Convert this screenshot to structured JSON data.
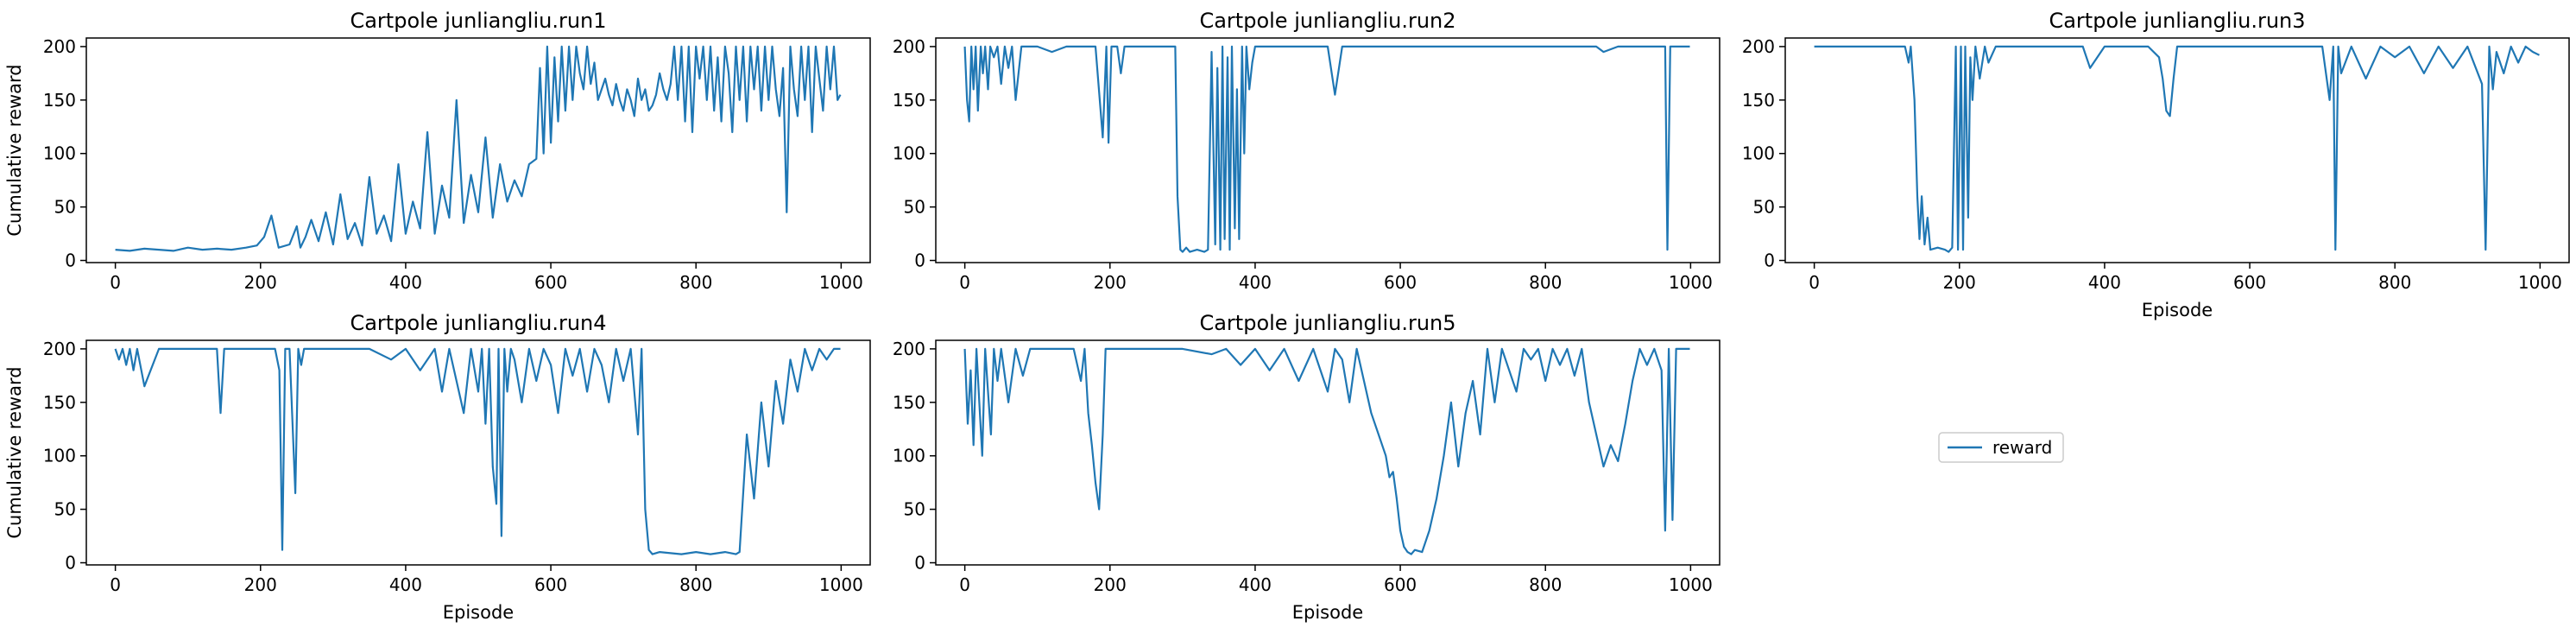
{
  "figure": {
    "line_color": "#1f77b4",
    "legend_label": "reward"
  },
  "chart_data": [
    {
      "type": "line",
      "title": "Cartpole junliangliu.run1",
      "xlabel": "",
      "ylabel": "Cumulative reward",
      "xlim": [
        -40,
        1040
      ],
      "ylim": [
        -2,
        208
      ],
      "xticks": [
        "0",
        "200",
        "400",
        "600",
        "800",
        "1000"
      ],
      "yticks": [
        "0",
        "50",
        "100",
        "150",
        "200"
      ],
      "series": [
        {
          "name": "reward",
          "x": [
            0,
            20,
            40,
            60,
            80,
            100,
            120,
            140,
            160,
            180,
            195,
            205,
            215,
            225,
            240,
            250,
            255,
            262,
            270,
            280,
            290,
            300,
            310,
            320,
            330,
            340,
            350,
            360,
            370,
            380,
            390,
            400,
            410,
            420,
            430,
            440,
            450,
            460,
            470,
            480,
            490,
            500,
            510,
            520,
            530,
            540,
            550,
            560,
            570,
            580,
            585,
            590,
            595,
            600,
            605,
            610,
            615,
            620,
            625,
            630,
            635,
            640,
            645,
            650,
            655,
            660,
            665,
            670,
            675,
            680,
            685,
            690,
            695,
            700,
            705,
            710,
            715,
            720,
            725,
            730,
            735,
            740,
            745,
            750,
            755,
            760,
            765,
            770,
            775,
            780,
            785,
            790,
            795,
            800,
            805,
            810,
            815,
            820,
            825,
            830,
            835,
            840,
            845,
            850,
            855,
            860,
            865,
            870,
            875,
            880,
            885,
            890,
            895,
            900,
            905,
            910,
            915,
            920,
            925,
            930,
            935,
            940,
            945,
            950,
            955,
            960,
            965,
            970,
            975,
            980,
            985,
            990,
            995,
            999
          ],
          "y": [
            10,
            9,
            11,
            10,
            9,
            12,
            10,
            11,
            10,
            12,
            14,
            22,
            42,
            12,
            15,
            32,
            12,
            22,
            38,
            18,
            45,
            15,
            62,
            20,
            35,
            14,
            78,
            25,
            42,
            18,
            90,
            25,
            55,
            30,
            120,
            25,
            70,
            40,
            150,
            35,
            80,
            45,
            115,
            40,
            90,
            55,
            75,
            60,
            90,
            95,
            180,
            100,
            200,
            110,
            190,
            130,
            200,
            140,
            200,
            150,
            200,
            175,
            160,
            200,
            165,
            185,
            150,
            160,
            170,
            155,
            145,
            165,
            150,
            140,
            160,
            150,
            135,
            170,
            150,
            160,
            140,
            145,
            155,
            175,
            160,
            150,
            165,
            200,
            150,
            200,
            130,
            200,
            120,
            200,
            170,
            200,
            150,
            200,
            140,
            190,
            130,
            200,
            175,
            120,
            200,
            150,
            200,
            130,
            200,
            160,
            200,
            140,
            200,
            150,
            200,
            160,
            135,
            180,
            45,
            200,
            160,
            135,
            200,
            150,
            200,
            120,
            200,
            170,
            140,
            200,
            160,
            200,
            150,
            155
          ]
        }
      ]
    },
    {
      "type": "line",
      "title": "Cartpole junliangliu.run2",
      "xlabel": "",
      "ylabel": "",
      "xlim": [
        -40,
        1040
      ],
      "ylim": [
        -2,
        208
      ],
      "xticks": [
        "0",
        "200",
        "400",
        "600",
        "800",
        "1000"
      ],
      "yticks": [
        "0",
        "50",
        "100",
        "150",
        "200"
      ],
      "series": [
        {
          "name": "reward",
          "x": [
            0,
            3,
            6,
            9,
            12,
            15,
            18,
            22,
            25,
            28,
            32,
            35,
            40,
            45,
            50,
            55,
            60,
            65,
            70,
            78,
            85,
            100,
            120,
            140,
            160,
            180,
            190,
            195,
            198,
            202,
            210,
            215,
            220,
            240,
            260,
            280,
            290,
            293,
            297,
            300,
            305,
            310,
            320,
            330,
            335,
            340,
            345,
            348,
            352,
            355,
            358,
            362,
            365,
            368,
            372,
            375,
            378,
            382,
            385,
            388,
            392,
            396,
            400,
            405,
            410,
            420,
            440,
            460,
            480,
            500,
            510,
            520,
            540,
            560,
            580,
            620,
            680,
            740,
            760,
            800,
            840,
            870,
            880,
            900,
            940,
            960,
            965,
            968,
            972,
            990,
            999
          ],
          "y": [
            200,
            150,
            130,
            200,
            160,
            200,
            140,
            200,
            175,
            200,
            160,
            200,
            190,
            200,
            165,
            200,
            180,
            200,
            150,
            200,
            200,
            200,
            195,
            200,
            200,
            200,
            115,
            200,
            110,
            200,
            200,
            175,
            200,
            200,
            200,
            200,
            200,
            60,
            10,
            8,
            12,
            8,
            10,
            8,
            10,
            195,
            15,
            180,
            10,
            200,
            20,
            190,
            10,
            200,
            30,
            160,
            20,
            200,
            100,
            200,
            160,
            185,
            200,
            200,
            200,
            200,
            200,
            200,
            200,
            200,
            155,
            200,
            200,
            200,
            200,
            200,
            200,
            200,
            200,
            200,
            200,
            200,
            195,
            200,
            200,
            200,
            200,
            10,
            200,
            200,
            200
          ]
        }
      ]
    },
    {
      "type": "line",
      "title": "Cartpole junliangliu.run3",
      "xlabel": "Episode",
      "ylabel": "",
      "xlim": [
        -40,
        1040
      ],
      "ylim": [
        -2,
        208
      ],
      "xticks": [
        "0",
        "200",
        "400",
        "600",
        "800",
        "1000"
      ],
      "yticks": [
        "0",
        "50",
        "100",
        "150",
        "200"
      ],
      "series": [
        {
          "name": "reward",
          "x": [
            0,
            50,
            100,
            125,
            130,
            133,
            138,
            142,
            145,
            148,
            152,
            156,
            160,
            170,
            180,
            185,
            190,
            195,
            198,
            202,
            205,
            208,
            212,
            215,
            218,
            222,
            228,
            235,
            240,
            250,
            260,
            280,
            300,
            320,
            340,
            370,
            380,
            400,
            420,
            440,
            460,
            475,
            480,
            485,
            490,
            495,
            500,
            510,
            520,
            560,
            600,
            640,
            680,
            700,
            710,
            715,
            718,
            722,
            726,
            740,
            760,
            780,
            800,
            820,
            840,
            860,
            880,
            900,
            920,
            925,
            930,
            935,
            940,
            950,
            960,
            970,
            980,
            990,
            999
          ],
          "y": [
            200,
            200,
            200,
            200,
            185,
            200,
            150,
            60,
            20,
            60,
            15,
            40,
            10,
            12,
            10,
            8,
            12,
            200,
            10,
            200,
            10,
            200,
            40,
            190,
            150,
            200,
            170,
            200,
            185,
            200,
            200,
            200,
            200,
            200,
            200,
            200,
            180,
            200,
            200,
            200,
            200,
            190,
            170,
            140,
            135,
            170,
            200,
            200,
            200,
            200,
            200,
            200,
            200,
            200,
            150,
            200,
            10,
            200,
            175,
            200,
            170,
            200,
            190,
            200,
            175,
            200,
            180,
            200,
            165,
            10,
            200,
            160,
            195,
            175,
            200,
            185,
            200,
            195,
            192
          ]
        }
      ]
    },
    {
      "type": "line",
      "title": "Cartpole junliangliu.run4",
      "xlabel": "Episode",
      "ylabel": "Cumulative reward",
      "xlim": [
        -40,
        1040
      ],
      "ylim": [
        -2,
        208
      ],
      "xticks": [
        "0",
        "200",
        "400",
        "600",
        "800",
        "1000"
      ],
      "yticks": [
        "0",
        "50",
        "100",
        "150",
        "200"
      ],
      "series": [
        {
          "name": "reward",
          "x": [
            0,
            5,
            10,
            15,
            20,
            25,
            30,
            40,
            60,
            80,
            100,
            140,
            145,
            150,
            200,
            220,
            226,
            230,
            234,
            240,
            248,
            252,
            256,
            260,
            280,
            300,
            350,
            380,
            400,
            420,
            440,
            450,
            460,
            470,
            480,
            490,
            500,
            505,
            510,
            515,
            520,
            525,
            528,
            532,
            536,
            540,
            545,
            550,
            560,
            570,
            580,
            590,
            600,
            610,
            620,
            630,
            640,
            650,
            660,
            670,
            680,
            690,
            700,
            710,
            720,
            725,
            730,
            735,
            740,
            750,
            780,
            800,
            820,
            840,
            855,
            860,
            870,
            880,
            890,
            900,
            910,
            920,
            930,
            940,
            950,
            960,
            970,
            980,
            990,
            999
          ],
          "y": [
            200,
            190,
            200,
            185,
            200,
            180,
            200,
            165,
            200,
            200,
            200,
            200,
            140,
            200,
            200,
            200,
            180,
            12,
            200,
            200,
            65,
            200,
            185,
            200,
            200,
            200,
            200,
            190,
            200,
            180,
            200,
            160,
            200,
            170,
            140,
            200,
            160,
            200,
            130,
            200,
            90,
            55,
            200,
            25,
            200,
            160,
            200,
            190,
            150,
            200,
            170,
            200,
            185,
            140,
            200,
            175,
            200,
            160,
            200,
            185,
            150,
            200,
            170,
            200,
            120,
            200,
            50,
            12,
            8,
            10,
            8,
            10,
            8,
            10,
            8,
            10,
            120,
            60,
            150,
            90,
            170,
            130,
            190,
            160,
            200,
            180,
            200,
            190,
            200,
            200
          ]
        }
      ]
    },
    {
      "type": "line",
      "title": "Cartpole junliangliu.run5",
      "xlabel": "Episode",
      "ylabel": "",
      "xlim": [
        -40,
        1040
      ],
      "ylim": [
        -2,
        208
      ],
      "xticks": [
        "0",
        "200",
        "400",
        "600",
        "800",
        "1000"
      ],
      "yticks": [
        "0",
        "50",
        "100",
        "150",
        "200"
      ],
      "series": [
        {
          "name": "reward",
          "x": [
            0,
            4,
            8,
            12,
            16,
            20,
            24,
            28,
            32,
            36,
            40,
            45,
            50,
            60,
            70,
            80,
            90,
            120,
            150,
            160,
            165,
            170,
            175,
            180,
            185,
            190,
            194,
            200,
            220,
            240,
            260,
            300,
            340,
            360,
            380,
            400,
            420,
            440,
            460,
            480,
            500,
            510,
            520,
            530,
            540,
            550,
            560,
            570,
            580,
            585,
            590,
            595,
            600,
            605,
            610,
            615,
            620,
            630,
            640,
            650,
            660,
            670,
            680,
            690,
            700,
            710,
            720,
            730,
            740,
            750,
            760,
            770,
            780,
            790,
            800,
            810,
            820,
            830,
            840,
            850,
            860,
            870,
            880,
            890,
            900,
            910,
            920,
            930,
            940,
            950,
            960,
            965,
            970,
            975,
            980,
            990,
            999
          ],
          "y": [
            200,
            130,
            180,
            110,
            200,
            150,
            100,
            200,
            160,
            120,
            200,
            170,
            200,
            150,
            200,
            175,
            200,
            200,
            200,
            170,
            200,
            140,
            110,
            75,
            50,
            120,
            200,
            200,
            200,
            200,
            200,
            200,
            195,
            200,
            185,
            200,
            180,
            200,
            170,
            200,
            160,
            200,
            190,
            150,
            200,
            170,
            140,
            120,
            100,
            80,
            85,
            60,
            30,
            15,
            10,
            8,
            12,
            10,
            30,
            60,
            100,
            150,
            90,
            140,
            170,
            120,
            200,
            150,
            200,
            180,
            160,
            200,
            190,
            200,
            170,
            200,
            185,
            200,
            175,
            200,
            150,
            120,
            90,
            110,
            95,
            130,
            170,
            200,
            185,
            200,
            180,
            30,
            200,
            40,
            200,
            200,
            200
          ]
        }
      ]
    }
  ]
}
